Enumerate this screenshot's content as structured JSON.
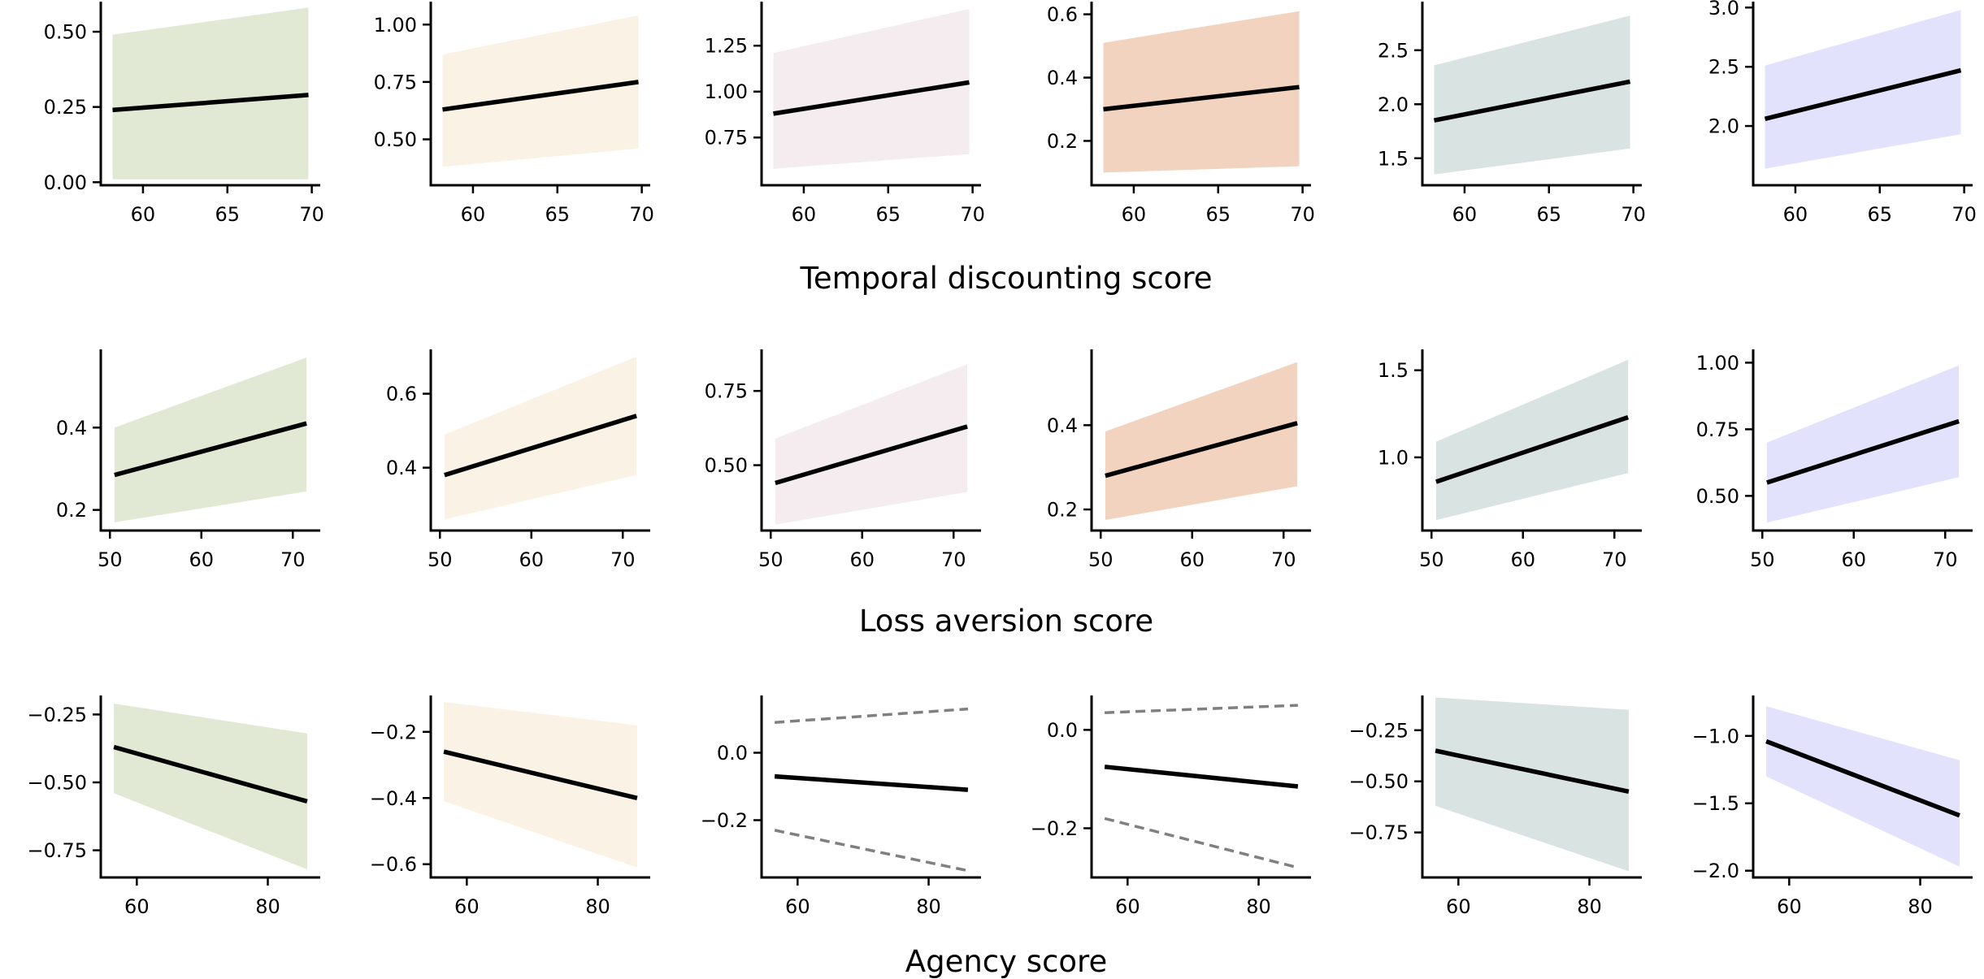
{
  "chart_data": {
    "type": "line",
    "rows": [
      {
        "xlabel": "Temporal discounting score",
        "xlim": [
          57.5,
          70.5
        ],
        "xticks": [
          60,
          65,
          70
        ],
        "panels": [
          {
            "color": "#e1e8d4",
            "band_style": "filled",
            "ylim": [
              -0.01,
              0.6
            ],
            "yticks": [
              0.0,
              0.25,
              0.5
            ],
            "ytick_labels": [
              "0.00",
              "0.25",
              "0.50"
            ],
            "line": {
              "x": [
                58.2,
                69.8
              ],
              "y": [
                0.24,
                0.29
              ]
            },
            "lower": {
              "x": [
                58.2,
                69.8
              ],
              "y": [
                0.01,
                0.01
              ]
            },
            "upper": {
              "x": [
                58.2,
                69.8
              ],
              "y": [
                0.49,
                0.58
              ]
            }
          },
          {
            "color": "#fbf2e6",
            "band_style": "filled",
            "ylim": [
              0.3,
              1.1
            ],
            "yticks": [
              0.5,
              0.75,
              1.0
            ],
            "ytick_labels": [
              "0.50",
              "0.75",
              "1.00"
            ],
            "line": {
              "x": [
                58.2,
                69.8
              ],
              "y": [
                0.63,
                0.75
              ]
            },
            "lower": {
              "x": [
                58.2,
                69.8
              ],
              "y": [
                0.38,
                0.46
              ]
            },
            "upper": {
              "x": [
                58.2,
                69.8
              ],
              "y": [
                0.87,
                1.04
              ]
            }
          },
          {
            "color": "#f4ecee",
            "band_style": "filled",
            "ylim": [
              0.49,
              1.49
            ],
            "yticks": [
              0.75,
              1.0,
              1.25
            ],
            "ytick_labels": [
              "0.75",
              "1.00",
              "1.25"
            ],
            "line": {
              "x": [
                58.2,
                69.8
              ],
              "y": [
                0.88,
                1.05
              ]
            },
            "lower": {
              "x": [
                58.2,
                69.8
              ],
              "y": [
                0.58,
                0.66
              ]
            },
            "upper": {
              "x": [
                58.2,
                69.8
              ],
              "y": [
                1.21,
                1.45
              ]
            }
          },
          {
            "color": "#f2d3bf",
            "band_style": "filled",
            "ylim": [
              0.06,
              0.64
            ],
            "yticks": [
              0.2,
              0.4,
              0.6
            ],
            "ytick_labels": [
              "0.2",
              "0.4",
              "0.6"
            ],
            "line": {
              "x": [
                58.2,
                69.8
              ],
              "y": [
                0.3,
                0.37
              ]
            },
            "lower": {
              "x": [
                58.2,
                69.8
              ],
              "y": [
                0.1,
                0.12
              ]
            },
            "upper": {
              "x": [
                58.2,
                69.8
              ],
              "y": [
                0.51,
                0.61
              ]
            }
          },
          {
            "color": "#d9e3e1",
            "band_style": "filled",
            "ylim": [
              1.25,
              2.95
            ],
            "yticks": [
              1.5,
              2.0,
              2.5
            ],
            "ytick_labels": [
              "1.5",
              "2.0",
              "2.5"
            ],
            "line": {
              "x": [
                58.2,
                69.8
              ],
              "y": [
                1.85,
                2.21
              ]
            },
            "lower": {
              "x": [
                58.2,
                69.8
              ],
              "y": [
                1.35,
                1.59
              ]
            },
            "upper": {
              "x": [
                58.2,
                69.8
              ],
              "y": [
                2.36,
                2.82
              ]
            }
          },
          {
            "color": "#e2e2fd",
            "band_style": "filled",
            "ylim": [
              1.5,
              3.05
            ],
            "yticks": [
              2.0,
              2.5,
              3.0
            ],
            "ytick_labels": [
              "2.0",
              "2.5",
              "3.0"
            ],
            "line": {
              "x": [
                58.2,
                69.8
              ],
              "y": [
                2.06,
                2.47
              ]
            },
            "lower": {
              "x": [
                58.2,
                69.8
              ],
              "y": [
                1.64,
                1.93
              ]
            },
            "upper": {
              "x": [
                58.2,
                69.8
              ],
              "y": [
                2.51,
                2.98
              ]
            }
          }
        ]
      },
      {
        "xlabel": "Loss aversion score",
        "xlim": [
          49,
          73
        ],
        "xticks": [
          50,
          60,
          70
        ],
        "panels": [
          {
            "color": "#e1e8d4",
            "band_style": "filled",
            "ylim": [
              0.15,
              0.59
            ],
            "yticks": [
              0.2,
              0.4
            ],
            "ytick_labels": [
              "0.2",
              "0.4"
            ],
            "line": {
              "x": [
                50.5,
                71.5
              ],
              "y": [
                0.285,
                0.41
              ]
            },
            "lower": {
              "x": [
                50.5,
                71.5
              ],
              "y": [
                0.17,
                0.245
              ]
            },
            "upper": {
              "x": [
                50.5,
                71.5
              ],
              "y": [
                0.4,
                0.57
              ]
            }
          },
          {
            "color": "#fbf2e6",
            "band_style": "filled",
            "ylim": [
              0.23,
              0.72
            ],
            "yticks": [
              0.4,
              0.6
            ],
            "ytick_labels": [
              "0.4",
              "0.6"
            ],
            "line": {
              "x": [
                50.5,
                71.5
              ],
              "y": [
                0.38,
                0.54
              ]
            },
            "lower": {
              "x": [
                50.5,
                71.5
              ],
              "y": [
                0.26,
                0.38
              ]
            },
            "upper": {
              "x": [
                50.5,
                71.5
              ],
              "y": [
                0.49,
                0.7
              ]
            }
          },
          {
            "color": "#f4ecee",
            "band_style": "filled",
            "ylim": [
              0.28,
              0.89
            ],
            "yticks": [
              0.5,
              0.75
            ],
            "ytick_labels": [
              "0.50",
              "0.75"
            ],
            "line": {
              "x": [
                50.5,
                71.5
              ],
              "y": [
                0.44,
                0.63
              ]
            },
            "lower": {
              "x": [
                50.5,
                71.5
              ],
              "y": [
                0.3,
                0.41
              ]
            },
            "upper": {
              "x": [
                50.5,
                71.5
              ],
              "y": [
                0.59,
                0.84
              ]
            }
          },
          {
            "color": "#f2d3bf",
            "band_style": "filled",
            "ylim": [
              0.15,
              0.58
            ],
            "yticks": [
              0.2,
              0.4
            ],
            "ytick_labels": [
              "0.2",
              "0.4"
            ],
            "line": {
              "x": [
                50.5,
                71.5
              ],
              "y": [
                0.28,
                0.405
              ]
            },
            "lower": {
              "x": [
                50.5,
                71.5
              ],
              "y": [
                0.175,
                0.255
              ]
            },
            "upper": {
              "x": [
                50.5,
                71.5
              ],
              "y": [
                0.385,
                0.55
              ]
            }
          },
          {
            "color": "#d9e3e1",
            "band_style": "filled",
            "ylim": [
              0.58,
              1.62
            ],
            "yticks": [
              1.0,
              1.5
            ],
            "ytick_labels": [
              "1.0",
              "1.5"
            ],
            "line": {
              "x": [
                50.5,
                71.5
              ],
              "y": [
                0.86,
                1.23
              ]
            },
            "lower": {
              "x": [
                50.5,
                71.5
              ],
              "y": [
                0.64,
                0.91
              ]
            },
            "upper": {
              "x": [
                50.5,
                71.5
              ],
              "y": [
                1.09,
                1.56
              ]
            }
          },
          {
            "color": "#e2e2fd",
            "band_style": "filled",
            "ylim": [
              0.37,
              1.05
            ],
            "yticks": [
              0.5,
              0.75,
              1.0
            ],
            "ytick_labels": [
              "0.50",
              "0.75",
              "1.00"
            ],
            "line": {
              "x": [
                50.5,
                71.5
              ],
              "y": [
                0.55,
                0.78
              ]
            },
            "lower": {
              "x": [
                50.5,
                71.5
              ],
              "y": [
                0.4,
                0.57
              ]
            },
            "upper": {
              "x": [
                50.5,
                71.5
              ],
              "y": [
                0.7,
                0.99
              ]
            }
          }
        ]
      },
      {
        "xlabel": "Agency score",
        "xlim": [
          54.5,
          88
        ],
        "xticks": [
          60,
          80
        ],
        "panels": [
          {
            "color": "#e1e8d4",
            "band_style": "filled",
            "ylim": [
              -0.85,
              -0.18
            ],
            "yticks": [
              -0.75,
              -0.5,
              -0.25
            ],
            "ytick_labels": [
              "−0.75",
              "−0.50",
              "−0.25"
            ],
            "line": {
              "x": [
                56.5,
                86
              ],
              "y": [
                -0.37,
                -0.57
              ]
            },
            "lower": {
              "x": [
                56.5,
                86
              ],
              "y": [
                -0.54,
                -0.82
              ]
            },
            "upper": {
              "x": [
                56.5,
                86
              ],
              "y": [
                -0.21,
                -0.32
              ]
            }
          },
          {
            "color": "#fbf2e6",
            "band_style": "filled",
            "ylim": [
              -0.64,
              -0.09
            ],
            "yticks": [
              -0.6,
              -0.4,
              -0.2
            ],
            "ytick_labels": [
              "−0.6",
              "−0.4",
              "−0.2"
            ],
            "line": {
              "x": [
                56.5,
                86
              ],
              "y": [
                -0.26,
                -0.4
              ]
            },
            "lower": {
              "x": [
                56.5,
                86
              ],
              "y": [
                -0.41,
                -0.61
              ]
            },
            "upper": {
              "x": [
                56.5,
                86
              ],
              "y": [
                -0.11,
                -0.18
              ]
            }
          },
          {
            "color": "#808080",
            "band_style": "dashed",
            "ylim": [
              -0.37,
              0.17
            ],
            "yticks": [
              -0.2,
              0.0
            ],
            "ytick_labels": [
              "−0.2",
              "0.0"
            ],
            "line": {
              "x": [
                56.5,
                86
              ],
              "y": [
                -0.07,
                -0.11
              ]
            },
            "lower": {
              "x": [
                56.5,
                86
              ],
              "y": [
                -0.23,
                -0.35
              ]
            },
            "upper": {
              "x": [
                56.5,
                86
              ],
              "y": [
                0.09,
                0.13
              ]
            }
          },
          {
            "color": "#808080",
            "band_style": "dashed",
            "ylim": [
              -0.3,
              0.07
            ],
            "yticks": [
              -0.2,
              0.0
            ],
            "ytick_labels": [
              "−0.2",
              "0.0"
            ],
            "line": {
              "x": [
                56.5,
                86
              ],
              "y": [
                -0.075,
                -0.115
              ]
            },
            "lower": {
              "x": [
                56.5,
                86
              ],
              "y": [
                -0.18,
                -0.28
              ]
            },
            "upper": {
              "x": [
                56.5,
                86
              ],
              "y": [
                0.035,
                0.05
              ]
            }
          },
          {
            "color": "#d9e3e1",
            "band_style": "filled",
            "ylim": [
              -0.97,
              -0.08
            ],
            "yticks": [
              -0.75,
              -0.5,
              -0.25
            ],
            "ytick_labels": [
              "−0.75",
              "−0.50",
              "−0.25"
            ],
            "line": {
              "x": [
                56.5,
                86
              ],
              "y": [
                -0.35,
                -0.55
              ]
            },
            "lower": {
              "x": [
                56.5,
                86
              ],
              "y": [
                -0.62,
                -0.94
              ]
            },
            "upper": {
              "x": [
                56.5,
                86
              ],
              "y": [
                -0.09,
                -0.15
              ]
            }
          },
          {
            "color": "#e2e2fd",
            "band_style": "filled",
            "ylim": [
              -2.05,
              -0.7
            ],
            "yticks": [
              -2.0,
              -1.5,
              -1.0
            ],
            "ytick_labels": [
              "−2.0",
              "−1.5",
              "−1.0"
            ],
            "line": {
              "x": [
                56.5,
                86
              ],
              "y": [
                -1.04,
                -1.59
              ]
            },
            "lower": {
              "x": [
                56.5,
                86
              ],
              "y": [
                -1.3,
                -1.97
              ]
            },
            "upper": {
              "x": [
                56.5,
                86
              ],
              "y": [
                -0.78,
                -1.18
              ]
            }
          }
        ]
      }
    ]
  }
}
